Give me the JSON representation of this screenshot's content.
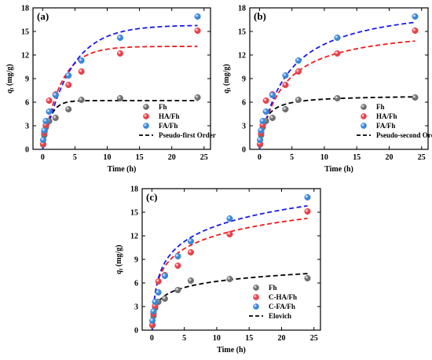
{
  "chart_data": [
    {
      "type": "scatter",
      "panel_label": "(a)",
      "xlabel": "Time (h)",
      "ylabel_main": "q",
      "ylabel_sub": "t",
      "ylabel_unit": " (mg/g)",
      "xlim": [
        -1.5,
        26
      ],
      "ylim": [
        0,
        18
      ],
      "xticks": [
        "0",
        "5",
        "10",
        "15",
        "20",
        "25"
      ],
      "yticks": [
        "0",
        "3",
        "6",
        "9",
        "12",
        "15",
        "18"
      ],
      "x": [
        0.083,
        0.25,
        0.5,
        1,
        2,
        4,
        6,
        12,
        24
      ],
      "series": [
        {
          "name": "Fh",
          "color": "#6f6f6f",
          "values": [
            0.6,
            1.8,
            2.8,
            3.6,
            4.0,
            5.1,
            6.3,
            6.5,
            6.6
          ]
        },
        {
          "name": "HA/Fh",
          "color": "#e8404a",
          "values": [
            0.7,
            2.1,
            3.1,
            6.2,
            7.0,
            8.2,
            9.9,
            12.2,
            15.1
          ]
        },
        {
          "name": "FA/Fh",
          "color": "#3a86d8",
          "values": [
            1.2,
            2.4,
            3.6,
            4.8,
            6.9,
            9.4,
            11.3,
            14.2,
            16.9
          ]
        }
      ],
      "fit_label": "Pseudo-first Order",
      "fits": [
        {
          "color": "#000000",
          "model": "pfo",
          "params": [
            6.2,
            0.9
          ]
        },
        {
          "color": "#ee1c1c",
          "model": "pfo",
          "params": [
            13.1,
            0.36
          ]
        },
        {
          "color": "#1a1ae8",
          "model": "pfo",
          "params": [
            15.8,
            0.24
          ]
        }
      ]
    },
    {
      "type": "scatter",
      "panel_label": "(b)",
      "xlabel": "Time (h)",
      "ylabel_main": "q",
      "ylabel_sub": "t",
      "ylabel_unit": " (mg/g)",
      "xlim": [
        -1.5,
        26
      ],
      "ylim": [
        0,
        18
      ],
      "xticks": [
        "0",
        "5",
        "10",
        "15",
        "20",
        "25"
      ],
      "yticks": [
        "0",
        "3",
        "6",
        "9",
        "12",
        "15",
        "18"
      ],
      "x": [
        0.083,
        0.25,
        0.5,
        1,
        2,
        4,
        6,
        12,
        24
      ],
      "series": [
        {
          "name": "Fh",
          "color": "#6f6f6f",
          "values": [
            0.6,
            1.8,
            2.8,
            3.6,
            4.0,
            5.1,
            6.3,
            6.5,
            6.6
          ]
        },
        {
          "name": "HA/Fh",
          "color": "#e8404a",
          "values": [
            0.7,
            2.1,
            3.1,
            6.2,
            7.0,
            8.2,
            9.9,
            12.2,
            15.1
          ]
        },
        {
          "name": "FA/Fh",
          "color": "#3a86d8",
          "values": [
            1.2,
            2.4,
            3.6,
            4.8,
            6.9,
            9.4,
            11.3,
            14.2,
            16.9
          ]
        }
      ],
      "fit_label": "Pseudo-second Order",
      "fits": [
        {
          "color": "#000000",
          "model": "pso",
          "params": [
            6.9,
            0.18
          ]
        },
        {
          "color": "#ee1c1c",
          "model": "pso",
          "params": [
            15.8,
            0.018
          ]
        },
        {
          "color": "#1a1ae8",
          "model": "pso",
          "params": [
            19.0,
            0.0125
          ]
        }
      ]
    },
    {
      "type": "scatter",
      "panel_label": "(c)",
      "xlabel": "Time (h)",
      "ylabel_main": "q",
      "ylabel_sub": "t",
      "ylabel_unit": " (mg/g)",
      "xlim": [
        -1.5,
        26
      ],
      "ylim": [
        0,
        18
      ],
      "xticks": [
        "0",
        "5",
        "10",
        "15",
        "20",
        "25"
      ],
      "yticks": [
        "0",
        "3",
        "6",
        "9",
        "12",
        "15",
        "18"
      ],
      "x": [
        0.083,
        0.25,
        0.5,
        1,
        2,
        4,
        6,
        12,
        24
      ],
      "series": [
        {
          "name": "Fh",
          "color": "#6f6f6f",
          "values": [
            0.6,
            1.8,
            2.8,
            3.6,
            4.0,
            5.1,
            6.3,
            6.5,
            6.6
          ]
        },
        {
          "name": "C-HA/Fh",
          "color": "#e8404a",
          "values": [
            0.7,
            2.1,
            3.1,
            6.2,
            7.0,
            8.2,
            9.9,
            12.2,
            15.1
          ]
        },
        {
          "name": "C-FA/Fh",
          "color": "#3a86d8",
          "values": [
            1.2,
            2.4,
            3.6,
            4.8,
            6.9,
            9.4,
            11.3,
            14.2,
            16.9
          ]
        }
      ],
      "fit_label": "Elovich",
      "fits": [
        {
          "color": "#000000",
          "model": "elovich",
          "params": [
            3.6,
            1.13
          ]
        },
        {
          "color": "#ee1c1c",
          "model": "elovich",
          "params": [
            6.4,
            2.46
          ]
        },
        {
          "color": "#1a1ae8",
          "model": "elovich",
          "params": [
            6.6,
            2.9
          ]
        }
      ]
    }
  ]
}
